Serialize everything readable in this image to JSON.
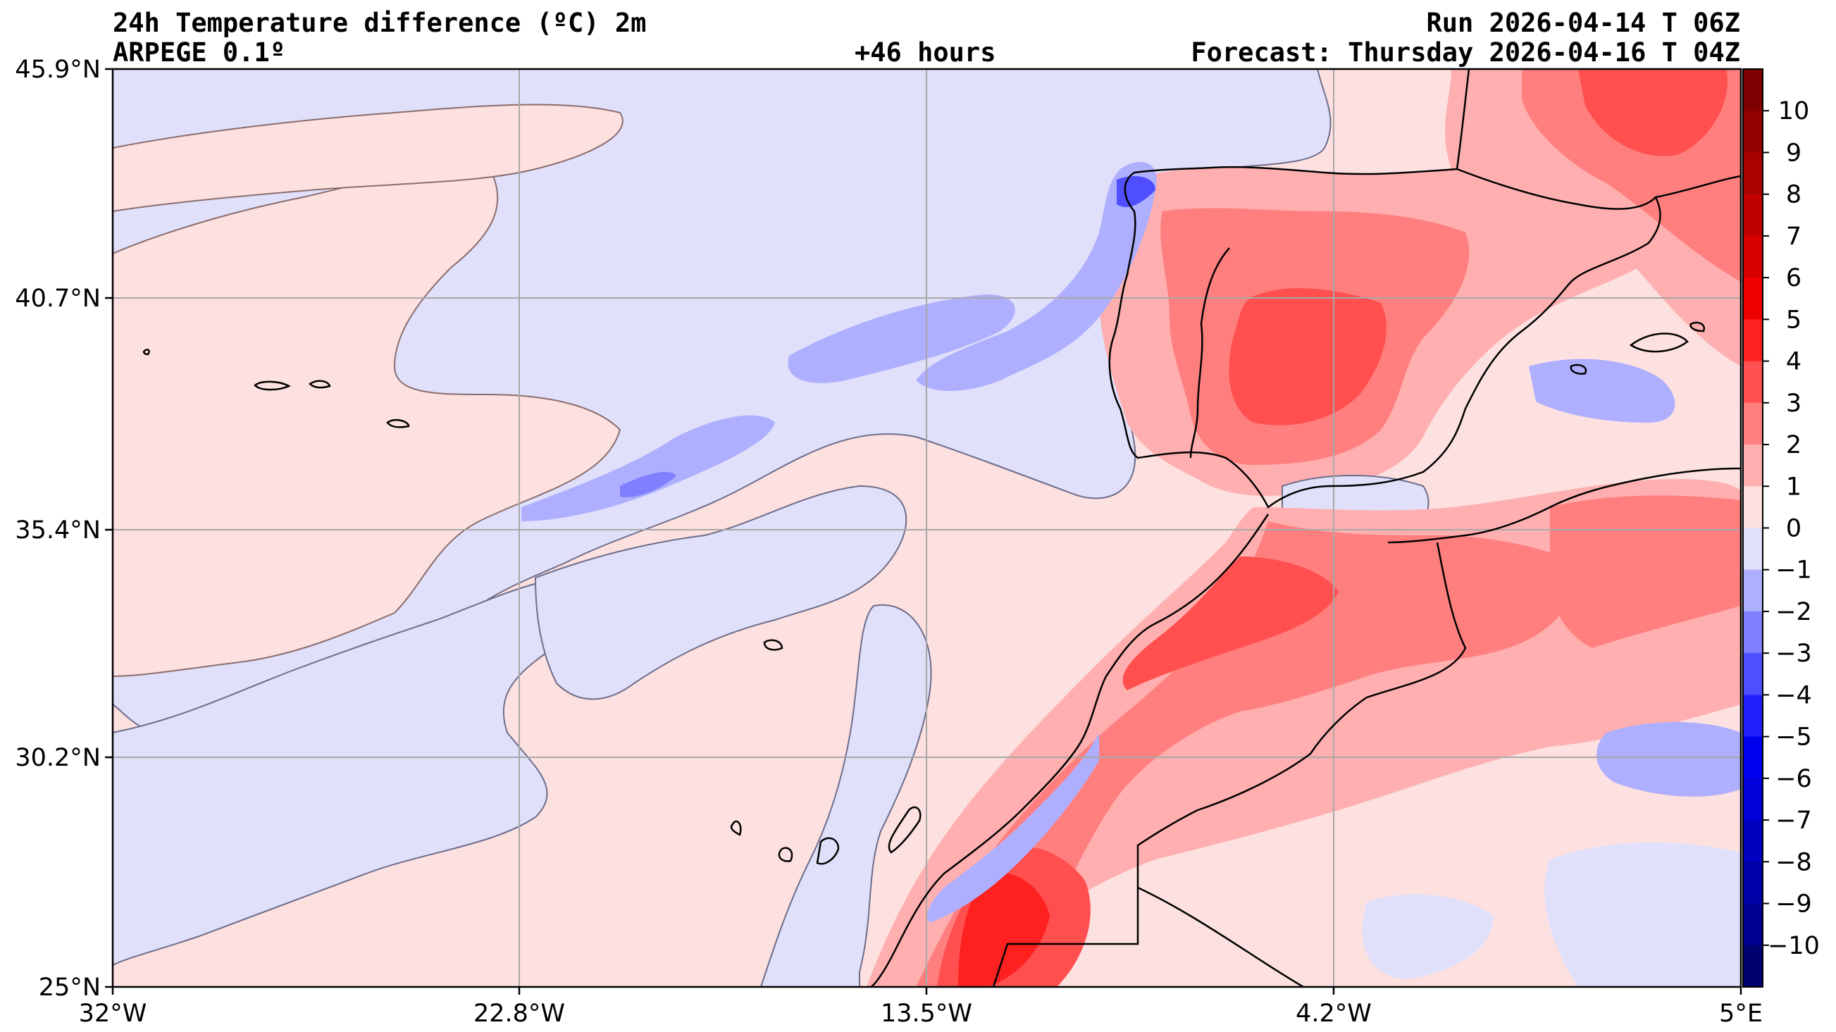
{
  "header": {
    "title": "24h Temperature difference (ºC) 2m",
    "model": "ARPEGE 0.1º",
    "lead_time": "+46 hours",
    "run": "Run 2026-04-14 T 06Z",
    "forecast": "Forecast: Thursday 2026-04-16 T 04Z"
  },
  "map": {
    "lon_labels": [
      "32°W",
      "22.8°W",
      "13.5°W",
      "4.2°W",
      "5°E"
    ],
    "lat_labels": [
      "45.9°N",
      "40.7°N",
      "35.4°N",
      "30.2°N",
      "25°N"
    ],
    "colors": {
      "ocean_light_red": "#fde0e0",
      "ocean_light_blue": "#e0e0fa",
      "grid": "#a8a8a8",
      "coast": "#000000"
    }
  },
  "colorbar": {
    "tick_labels": [
      "10",
      "9",
      "8",
      "7",
      "6",
      "5",
      "4",
      "3",
      "2",
      "1",
      "0",
      "−1",
      "−2",
      "−3",
      "−4",
      "−5",
      "−6",
      "−7",
      "−8",
      "−9",
      "−10"
    ],
    "colors_top_to_bottom": [
      "#7f0000",
      "#930000",
      "#a90000",
      "#c10000",
      "#d90000",
      "#ef0000",
      "#ff2020",
      "#ff4f4f",
      "#ff7f7f",
      "#ffafaf",
      "#fde0e0",
      "#e0e0fa",
      "#afafff",
      "#7f7fff",
      "#4f4fff",
      "#2020ff",
      "#0000ef",
      "#0000d9",
      "#0000c1",
      "#0000a9",
      "#000093",
      "#00006f"
    ]
  }
}
